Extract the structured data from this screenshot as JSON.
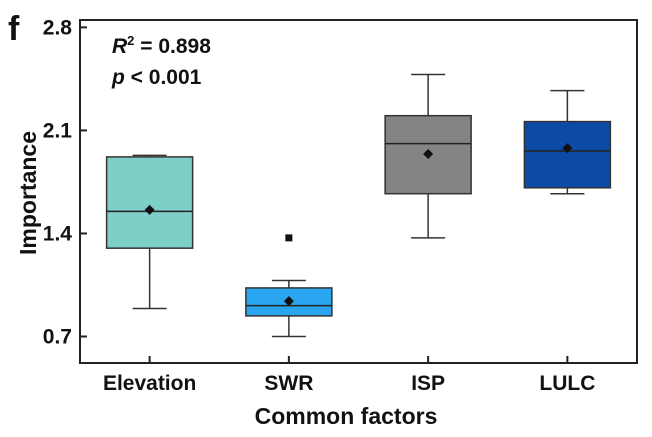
{
  "panel_label": "f",
  "annotations": {
    "r2_symbol": "R",
    "r2_sup": "2",
    "r2_value": " = 0.898",
    "p_symbol": "p",
    "p_value": " < 0.001"
  },
  "chart_data": {
    "type": "box",
    "xlabel": "Common factors",
    "ylabel": "Importance",
    "ylim": [
      0.52,
      2.85
    ],
    "yticks": [
      0.7,
      1.4,
      2.1,
      2.8
    ],
    "ytick_labels": [
      "0.7",
      "1.4",
      "2.1",
      "2.8"
    ],
    "categories": [
      "Elevation",
      "SWR",
      "ISP",
      "LULC"
    ],
    "boxes": [
      {
        "category": "Elevation",
        "color": "#7ecfc7",
        "whisker_low": 0.89,
        "q1": 1.3,
        "median": 1.55,
        "q3": 1.92,
        "whisker_high": 1.93,
        "mean": 1.56,
        "outliers": []
      },
      {
        "category": "SWR",
        "color": "#2aa6f0",
        "whisker_low": 0.7,
        "q1": 0.84,
        "median": 0.91,
        "q3": 1.03,
        "whisker_high": 1.08,
        "mean": 0.94,
        "outliers": [
          1.37
        ]
      },
      {
        "category": "ISP",
        "color": "#848484",
        "whisker_low": 1.37,
        "q1": 1.67,
        "median": 2.01,
        "q3": 2.2,
        "whisker_high": 2.48,
        "mean": 1.94,
        "outliers": []
      },
      {
        "category": "LULC",
        "color": "#0d4aa6",
        "whisker_low": 1.67,
        "q1": 1.71,
        "median": 1.96,
        "q3": 2.16,
        "whisker_high": 2.37,
        "mean": 1.98,
        "outliers": []
      }
    ]
  }
}
